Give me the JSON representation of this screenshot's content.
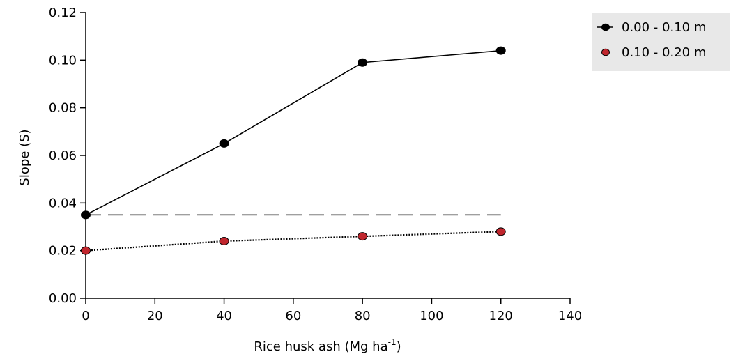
{
  "chart_data": {
    "type": "line",
    "title": "",
    "xlabel": "Rice husk ash (Mg ha",
    "xlabel_sup": "-1",
    "xlabel_end": ")",
    "ylabel": "Slope (S)",
    "xlim": [
      0,
      140
    ],
    "ylim": [
      0,
      0.12
    ],
    "xticks": [
      "0",
      "20",
      "40",
      "60",
      "80",
      "100",
      "120",
      "140"
    ],
    "yticks": [
      "0.00",
      "0.02",
      "0.04",
      "0.06",
      "0.08",
      "0.10",
      "0.12"
    ],
    "grid": false,
    "legend_position": "top-right",
    "series": [
      {
        "name": "0.00 - 0.10 m",
        "x": [
          0,
          40,
          80,
          120
        ],
        "y": [
          0.035,
          0.065,
          0.099,
          0.104
        ],
        "color": "#000000",
        "line_style": "solid"
      },
      {
        "name": "0.10 - 0.20 m",
        "x": [
          0,
          40,
          80,
          120
        ],
        "y": [
          0.02,
          0.024,
          0.026,
          0.028
        ],
        "color": "#c0262d",
        "line_style": "dotted"
      }
    ],
    "reference_line": {
      "y": 0.035,
      "x_range": [
        0,
        120
      ],
      "style": "dashed",
      "color": "#000000"
    }
  }
}
